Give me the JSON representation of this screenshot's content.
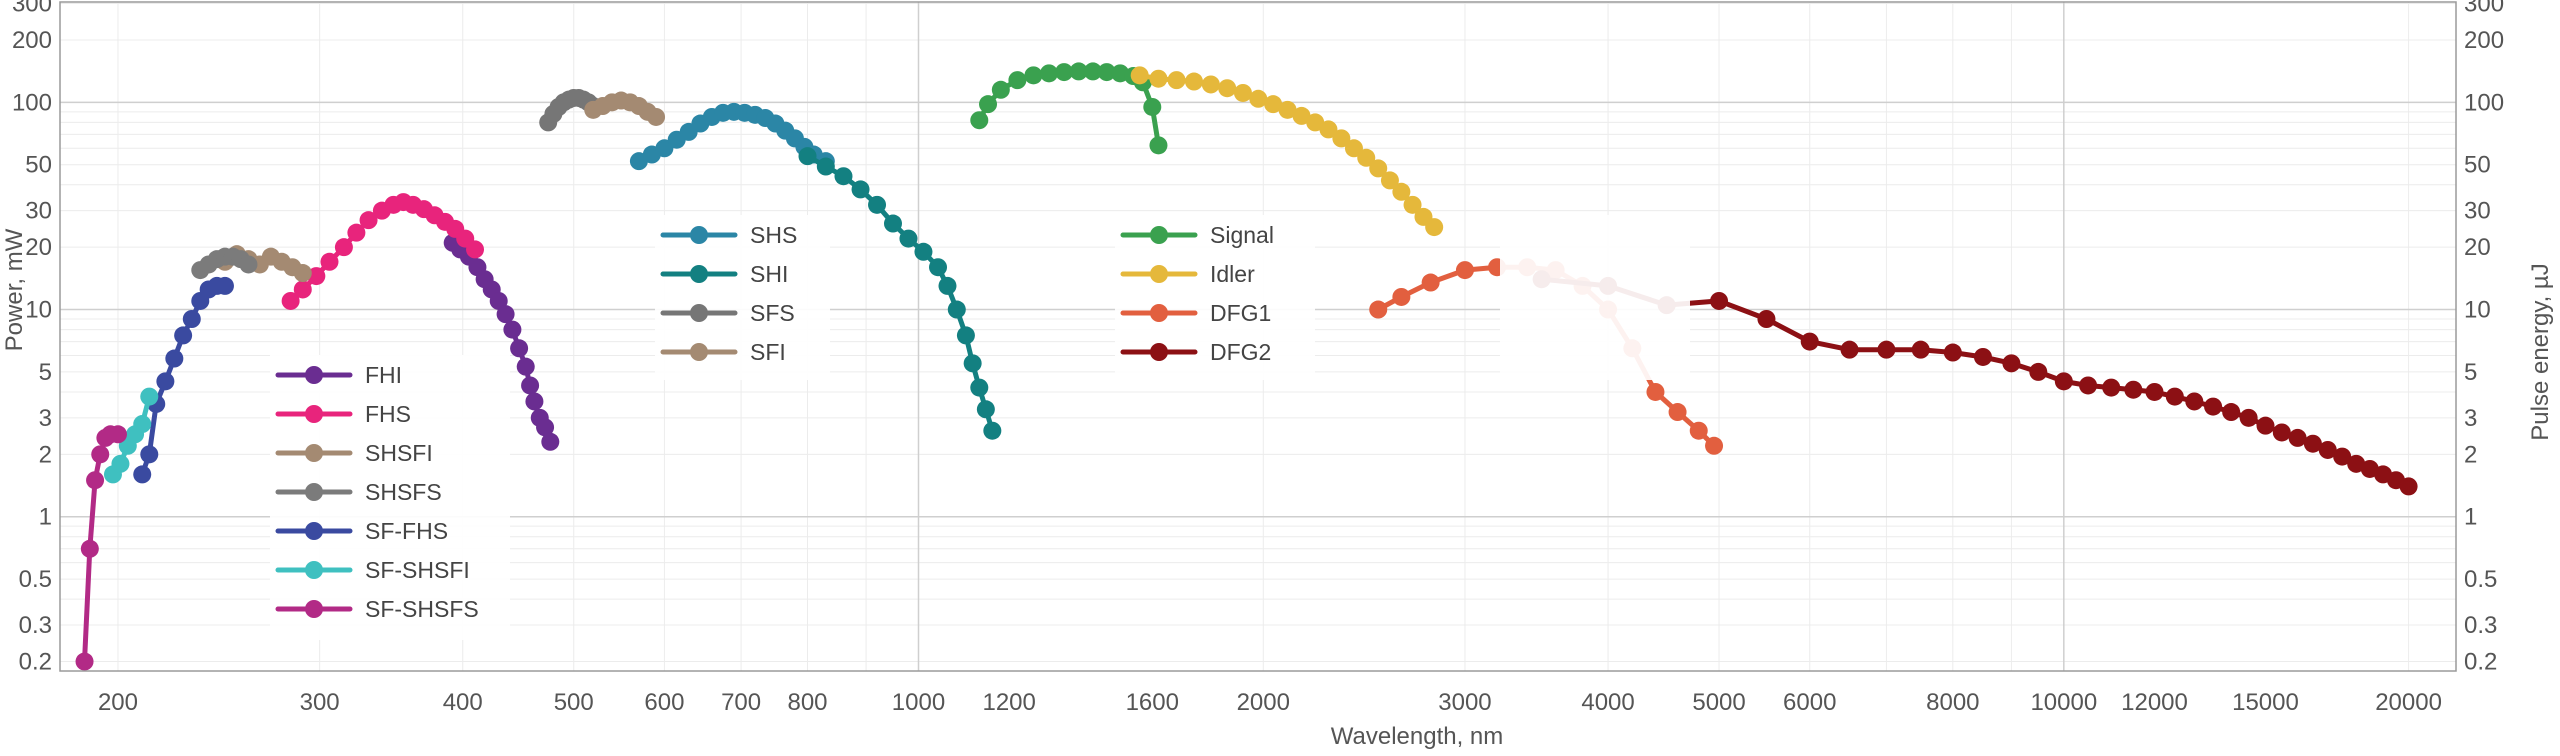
{
  "chart_data": {
    "type": "line",
    "xlabel": "Wavelength, nm",
    "ylabel_left": "Power, mW",
    "ylabel_right": "Pulse energy, µJ",
    "x_scale": "log",
    "y_scale": "log",
    "xlim": [
      178,
      22000
    ],
    "ylim": [
      0.18,
      305
    ],
    "grid": true,
    "x_ticks": [
      200,
      300,
      400,
      500,
      600,
      700,
      800,
      1000,
      1200,
      1600,
      2000,
      3000,
      4000,
      5000,
      6000,
      8000,
      10000,
      12000,
      15000,
      20000
    ],
    "x_tick_labels": [
      "200",
      "300",
      "400",
      "500",
      "600",
      "700",
      "800",
      "1000",
      "1200",
      "1600",
      "2000",
      "3000",
      "4000",
      "5000",
      "6000",
      "8000",
      "10000",
      "12000",
      "15000",
      "20000"
    ],
    "y_ticks": [
      0.2,
      0.3,
      0.5,
      1,
      2,
      3,
      5,
      10,
      20,
      30,
      50,
      100,
      200,
      300
    ],
    "y_tick_labels": [
      "0.2",
      "0.3",
      "0.5",
      "1",
      "2",
      "3",
      "5",
      "10",
      "20",
      "30",
      "50",
      "100",
      "200",
      "300"
    ],
    "legends": [
      {
        "position": "lower-left",
        "entries": [
          "FHI",
          "FHS",
          "SHSFI",
          "SHSFS",
          "SF-FHS",
          "SF-SHSFI",
          "SF-SHSFS"
        ]
      },
      {
        "position": "center-left",
        "entries": [
          "SHS",
          "SHI",
          "SFS",
          "SFI"
        ]
      },
      {
        "position": "center",
        "entries": [
          "Signal",
          "Idler",
          "DFG1",
          "DFG2"
        ]
      },
      {
        "position": "center-right",
        "entries": []
      }
    ],
    "series": [
      {
        "name": "FHI",
        "color": "#6a2d91",
        "x": [
          392,
          398,
          405,
          412,
          418,
          424,
          430,
          436,
          442,
          448,
          454,
          458,
          462,
          467,
          472,
          477
        ],
        "y": [
          21,
          19.5,
          18,
          16,
          14,
          12.5,
          11,
          9.5,
          8,
          6.5,
          5.3,
          4.3,
          3.6,
          3.0,
          2.7,
          2.3
        ]
      },
      {
        "name": "FHS",
        "color": "#e8247c",
        "x": [
          283,
          290,
          298,
          306,
          315,
          323,
          331,
          340,
          348,
          355,
          362,
          370,
          378,
          386,
          394,
          402,
          410
        ],
        "y": [
          11,
          12.5,
          14.5,
          17,
          20,
          23.5,
          27,
          30,
          32,
          33,
          32,
          30.5,
          28.5,
          26.5,
          24.5,
          22,
          19.5
        ]
      },
      {
        "name": "SHSFI",
        "color": "#a48a72",
        "x": [
          248,
          254,
          260,
          266,
          272,
          278,
          284,
          290
        ],
        "y": [
          17,
          18.5,
          17.5,
          16.5,
          18,
          17,
          16,
          15
        ]
      },
      {
        "name": "SHSFS",
        "color": "#7b7b7b",
        "x": [
          236,
          240,
          244,
          248,
          252,
          256,
          260
        ],
        "y": [
          15.5,
          16.5,
          17.5,
          18,
          18,
          17.5,
          16.5
        ]
      },
      {
        "name": "SF-FHS",
        "color": "#3a4aa0",
        "x": [
          210,
          213,
          216,
          220,
          224,
          228,
          232,
          236,
          240,
          244,
          248
        ],
        "y": [
          1.6,
          2.0,
          3.5,
          4.5,
          5.8,
          7.5,
          9.0,
          11.0,
          12.5,
          13.0,
          13.0
        ]
      },
      {
        "name": "SF-SHSFI",
        "color": "#3fc0c0",
        "x": [
          198,
          201,
          204,
          207,
          210,
          213
        ],
        "y": [
          1.6,
          1.8,
          2.2,
          2.5,
          2.8,
          3.8
        ]
      },
      {
        "name": "SF-SHSFS",
        "color": "#b22a86",
        "x": [
          187,
          189,
          191,
          193,
          195,
          197,
          200
        ],
        "y": [
          0.2,
          0.7,
          1.5,
          2.0,
          2.4,
          2.5,
          2.5
        ]
      },
      {
        "name": "SHS",
        "color": "#2b86a6",
        "x": [
          570,
          585,
          600,
          615,
          630,
          645,
          660,
          675,
          690,
          705,
          720,
          735,
          750,
          765,
          780,
          795,
          810,
          830
        ],
        "y": [
          52,
          56,
          60,
          66,
          72,
          79,
          85,
          89,
          90,
          89,
          87,
          84,
          79,
          73,
          67,
          61,
          56,
          52
        ]
      },
      {
        "name": "SHI",
        "color": "#138081",
        "x": [
          800,
          830,
          860,
          890,
          920,
          950,
          980,
          1010,
          1040,
          1060,
          1080,
          1100,
          1115,
          1130,
          1145,
          1160
        ],
        "y": [
          55,
          49,
          44,
          38,
          32,
          26,
          22,
          19,
          16,
          13,
          10,
          7.5,
          5.5,
          4.2,
          3.3,
          2.6
        ]
      },
      {
        "name": "SFS",
        "color": "#767676",
        "x": [
          475,
          480,
          485,
          490,
          495,
          500,
          505,
          510,
          515,
          520
        ],
        "y": [
          80,
          88,
          95,
          100,
          103,
          105,
          105,
          103,
          100,
          96
        ]
      },
      {
        "name": "SFI",
        "color": "#a48a72",
        "x": [
          520,
          530,
          540,
          550,
          560,
          570,
          580,
          590
        ],
        "y": [
          92,
          96,
          100,
          102,
          100,
          96,
          90,
          85
        ]
      },
      {
        "name": "Signal",
        "color": "#3aa14f",
        "x": [
          1130,
          1150,
          1180,
          1220,
          1260,
          1300,
          1340,
          1380,
          1420,
          1460,
          1500,
          1540,
          1570,
          1600,
          1620
        ],
        "y": [
          82,
          98,
          115,
          128,
          135,
          138,
          140,
          141,
          141,
          140,
          138,
          134,
          125,
          95,
          62
        ]
      },
      {
        "name": "Idler",
        "color": "#e5b83b",
        "x": [
          1560,
          1620,
          1680,
          1740,
          1800,
          1860,
          1920,
          1980,
          2040,
          2100,
          2160,
          2220,
          2280,
          2340,
          2400,
          2460,
          2520,
          2580,
          2640,
          2700,
          2760,
          2820
        ],
        "y": [
          135,
          130,
          128,
          126,
          122,
          117,
          111,
          104,
          98,
          92,
          86,
          80,
          74,
          67,
          60,
          54,
          48,
          42,
          37,
          32,
          28,
          25
        ]
      },
      {
        "name": "DFG1",
        "color": "#e25f3f",
        "x": [
          2520,
          2640,
          2800,
          3000,
          3200,
          3400,
          3600,
          3800,
          4000,
          4200,
          4400,
          4600,
          4800,
          4950
        ],
        "y": [
          10,
          11.5,
          13.5,
          15.5,
          16.0,
          16.0,
          15.5,
          13.0,
          10.0,
          6.5,
          4.0,
          3.2,
          2.6,
          2.2
        ]
      },
      {
        "name": "DFG2",
        "color": "#8c1014",
        "x": [
          3500,
          4000,
          4500,
          5000,
          5500,
          6000,
          6500,
          7000,
          7500,
          8000,
          8500,
          9000,
          9500,
          10000,
          10500,
          11000,
          11500,
          12000,
          12500,
          13000,
          13500,
          14000,
          14500,
          15000,
          15500,
          16000,
          16500,
          17000,
          17500,
          18000,
          18500,
          19000,
          19500,
          20000
        ],
        "y": [
          14,
          13,
          10.5,
          11,
          9.0,
          7.0,
          6.4,
          6.4,
          6.4,
          6.2,
          5.9,
          5.5,
          5.0,
          4.5,
          4.3,
          4.2,
          4.1,
          4.0,
          3.8,
          3.6,
          3.4,
          3.2,
          3.0,
          2.75,
          2.55,
          2.4,
          2.25,
          2.1,
          1.95,
          1.8,
          1.7,
          1.6,
          1.5,
          1.4
        ]
      }
    ]
  }
}
